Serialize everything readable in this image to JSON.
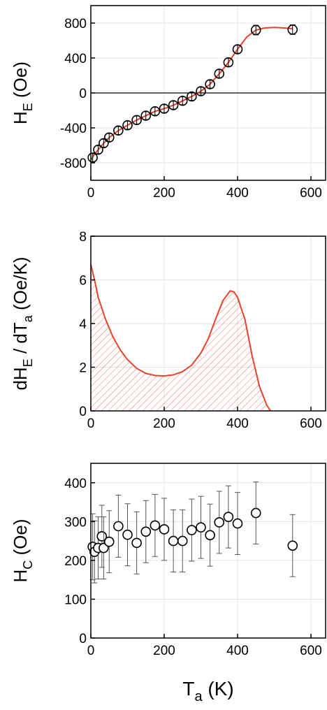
{
  "chart_data": [
    {
      "type": "scatter",
      "panel": "top",
      "ylabel": "H",
      "ylabel_sub": "E",
      "ylabel_unit": " (Oe)",
      "xlim": [
        0,
        640
      ],
      "ylim": [
        -1000,
        1000
      ],
      "xticks": [
        0,
        200,
        400,
        600
      ],
      "yticks": [
        -800,
        -400,
        0,
        400,
        800
      ],
      "zero_line": true,
      "grid": true,
      "marker_color": "#000000",
      "fit_color": "#e8412c",
      "points": {
        "x": [
          5,
          20,
          35,
          50,
          75,
          100,
          125,
          150,
          175,
          200,
          225,
          250,
          275,
          300,
          325,
          350,
          375,
          400,
          450,
          550
        ],
        "y": [
          -740,
          -650,
          -575,
          -510,
          -430,
          -370,
          -310,
          -260,
          -210,
          -180,
          -140,
          -90,
          -40,
          20,
          100,
          220,
          350,
          500,
          720,
          725
        ],
        "err": [
          45,
          45,
          45,
          45,
          45,
          45,
          45,
          45,
          45,
          45,
          45,
          45,
          45,
          45,
          45,
          45,
          45,
          45,
          55,
          55
        ]
      },
      "fit": {
        "x": [
          0,
          10,
          20,
          35,
          50,
          75,
          100,
          125,
          150,
          175,
          200,
          225,
          250,
          275,
          300,
          325,
          350,
          375,
          400,
          425,
          450,
          475,
          500,
          525,
          550
        ],
        "y": [
          -770,
          -700,
          -650,
          -575,
          -510,
          -430,
          -370,
          -310,
          -260,
          -210,
          -180,
          -140,
          -90,
          -40,
          20,
          100,
          220,
          350,
          500,
          640,
          720,
          745,
          750,
          745,
          735
        ]
      }
    },
    {
      "type": "area",
      "panel": "middle",
      "ylabel": "dH",
      "ylabel_sub": "E",
      "ylabel_mid": " / dT",
      "ylabel_sub2": "a",
      "ylabel_unit": " (Oe/K)",
      "xlim": [
        0,
        640
      ],
      "ylim": [
        0,
        8
      ],
      "xticks": [
        0,
        200,
        400,
        600
      ],
      "yticks": [
        0,
        2,
        4,
        6,
        8
      ],
      "grid": true,
      "line_color": "#e8412c",
      "hatch": "diagonal",
      "x": [
        0,
        10,
        20,
        40,
        60,
        80,
        100,
        125,
        150,
        175,
        200,
        225,
        250,
        275,
        300,
        320,
        340,
        360,
        380,
        390,
        400,
        420,
        440,
        460,
        480,
        490
      ],
      "y": [
        6.7,
        6.0,
        5.2,
        4.2,
        3.4,
        2.8,
        2.35,
        1.95,
        1.72,
        1.62,
        1.6,
        1.65,
        1.8,
        2.1,
        2.65,
        3.3,
        4.2,
        5.05,
        5.5,
        5.45,
        5.2,
        4.2,
        2.5,
        1.1,
        0.25,
        0
      ]
    },
    {
      "type": "scatter",
      "panel": "bottom",
      "ylabel": "H",
      "ylabel_sub": "C",
      "ylabel_unit": " (Oe)",
      "xlabel": "T",
      "xlabel_sub": "a",
      "xlabel_unit": " (K)",
      "xlim": [
        0,
        640
      ],
      "ylim": [
        0,
        450
      ],
      "xticks": [
        0,
        200,
        400,
        600
      ],
      "yticks": [
        0,
        100,
        200,
        300,
        400
      ],
      "grid": true,
      "marker_color": "#000000",
      "points": {
        "x": [
          5,
          10,
          20,
          30,
          35,
          50,
          75,
          100,
          125,
          150,
          175,
          200,
          225,
          250,
          275,
          300,
          325,
          350,
          375,
          400,
          450,
          550
        ],
        "y": [
          235,
          222,
          232,
          262,
          232,
          248,
          288,
          266,
          245,
          274,
          290,
          280,
          250,
          250,
          278,
          285,
          265,
          298,
          312,
          295,
          322,
          238
        ],
        "err": [
          85,
          80,
          80,
          80,
          80,
          80,
          80,
          80,
          80,
          80,
          80,
          80,
          80,
          80,
          80,
          80,
          80,
          80,
          80,
          80,
          80,
          80
        ]
      }
    }
  ]
}
